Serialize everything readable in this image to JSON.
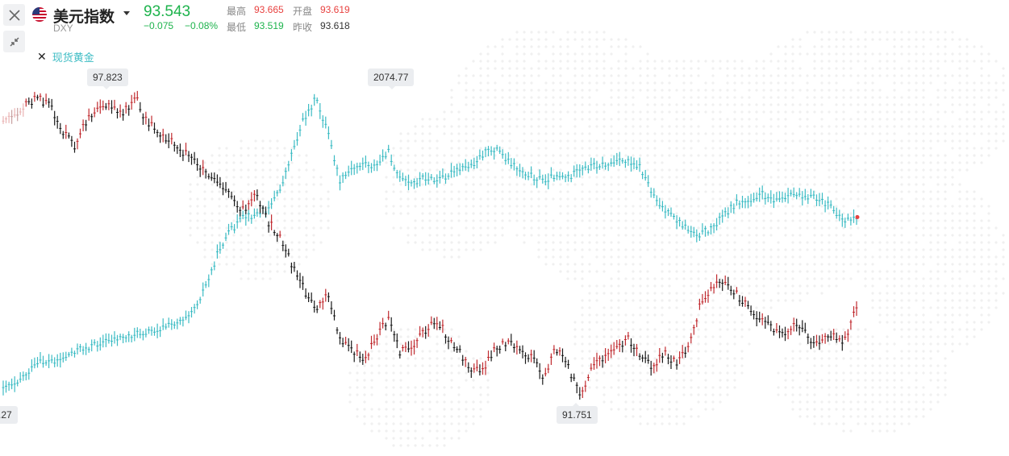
{
  "instrument": {
    "name": "美元指数",
    "code": "DXY",
    "flag_icon": "us-flag-icon",
    "price": "93.543",
    "change": "−0.075",
    "change_pct": "−0.08%"
  },
  "stats": {
    "high_label": "最高",
    "high": "93.665",
    "open_label": "开盘",
    "open": "93.619",
    "low_label": "最低",
    "low": "93.519",
    "prev_close_label": "昨收",
    "prev_close": "93.618"
  },
  "compare": {
    "label": "现货黄金",
    "remove_icon": "close-icon"
  },
  "buttons": {
    "close_icon": "close-icon",
    "collapse_icon": "collapse-arrows-icon"
  },
  "annotations": {
    "dxy_max": "97.823",
    "dxy_min": "91.751",
    "gold_max": "2074.77",
    "gold_min_partial": ".27"
  },
  "colors": {
    "up": "#e8413f",
    "down": "#1db34c",
    "dxy_up_bar": "#c12b30",
    "dxy_down_bar": "#1a1a1a",
    "gold_bar": "#3dbcc4"
  },
  "chart_data": {
    "type": "line",
    "series": [
      {
        "name": "美元指数",
        "values": [
          97.3,
          97.5,
          97.7,
          97.82,
          97.6,
          97.1,
          96.8,
          97.4,
          97.7,
          97.6,
          97.5,
          97.82,
          97.3,
          97.1,
          96.9,
          96.7,
          96.5,
          96.3,
          96.1,
          95.8,
          95.5,
          95.8,
          95.3,
          95.0,
          94.4,
          93.9,
          93.5,
          93.8,
          92.9,
          92.7,
          92.4,
          92.9,
          93.3,
          92.6,
          92.7,
          93.0,
          93.3,
          92.9,
          92.6,
          92.2,
          92.3,
          92.7,
          92.8,
          92.6,
          92.5,
          92.1,
          92.7,
          92.3,
          91.75,
          92.3,
          92.5,
          92.7,
          92.9,
          92.5,
          92.3,
          92.6,
          92.4,
          92.7,
          93.6,
          93.9,
          94.1,
          93.8,
          93.5,
          93.3,
          93.1,
          93.0,
          93.2,
          92.9,
          92.8,
          93.0,
          92.8,
          93.54
        ],
        "color": "#1a1a1a"
      },
      {
        "name": "现货黄金",
        "values": [
          1474.27,
          1480,
          1500,
          1520,
          1525,
          1530,
          1548,
          1553,
          1562,
          1570,
          1575,
          1581,
          1586,
          1592,
          1601,
          1615,
          1640,
          1690,
          1760,
          1800,
          1825,
          1830,
          1845,
          1880,
          1960,
          2030,
          2074.77,
          2005,
          1900,
          1925,
          1940,
          1930,
          1965,
          1905,
          1895,
          1910,
          1900,
          1915,
          1925,
          1935,
          1960,
          1970,
          1945,
          1925,
          1912,
          1902,
          1915,
          1910,
          1922,
          1935,
          1935,
          1940,
          1946,
          1930,
          1878,
          1840,
          1820,
          1800,
          1790,
          1805,
          1832,
          1855,
          1860,
          1875,
          1865,
          1862,
          1875,
          1870,
          1860,
          1845,
          1818,
          1826
        ],
        "color": "#3dbcc4"
      }
    ]
  }
}
